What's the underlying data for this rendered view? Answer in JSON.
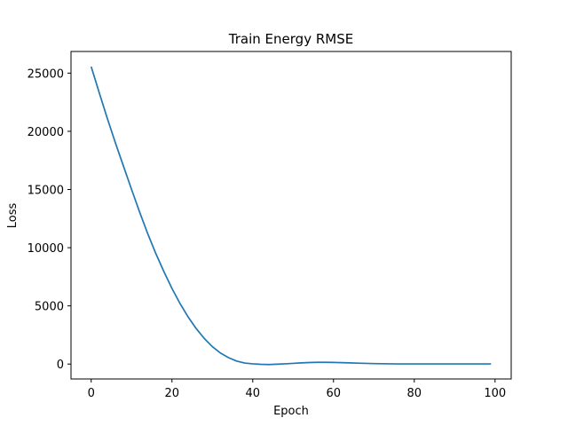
{
  "chart_data": {
    "type": "line",
    "title": "Train Energy RMSE",
    "xlabel": "Epoch",
    "ylabel": "Loss",
    "xlim": [
      -5,
      104
    ],
    "ylim": [
      -1280,
      26860
    ],
    "xticks": [
      0,
      20,
      40,
      60,
      80,
      100
    ],
    "yticks": [
      0,
      5000,
      10000,
      15000,
      20000,
      25000
    ],
    "grid": false,
    "color": "#1f77b4",
    "series": [
      {
        "x": [
          0,
          2,
          4,
          6,
          8,
          10,
          12,
          14,
          16,
          18,
          20,
          22,
          24,
          26,
          28,
          30,
          32,
          34,
          36,
          38,
          40,
          42,
          44,
          46,
          48,
          50,
          52,
          54,
          56,
          58,
          60,
          62,
          64,
          66,
          68,
          70,
          72,
          74,
          76,
          78,
          80,
          82,
          84,
          86,
          88,
          90,
          92,
          94,
          96,
          98,
          99
        ],
        "values": [
          25550,
          23300,
          21100,
          19000,
          17000,
          15000,
          13050,
          11200,
          9500,
          7950,
          6500,
          5200,
          4050,
          3050,
          2200,
          1500,
          950,
          550,
          260,
          90,
          20,
          -20,
          -40,
          -10,
          20,
          60,
          100,
          130,
          150,
          150,
          140,
          120,
          100,
          80,
          60,
          40,
          30,
          20,
          10,
          10,
          10,
          10,
          10,
          10,
          10,
          10,
          10,
          10,
          10,
          10,
          10
        ]
      }
    ]
  }
}
